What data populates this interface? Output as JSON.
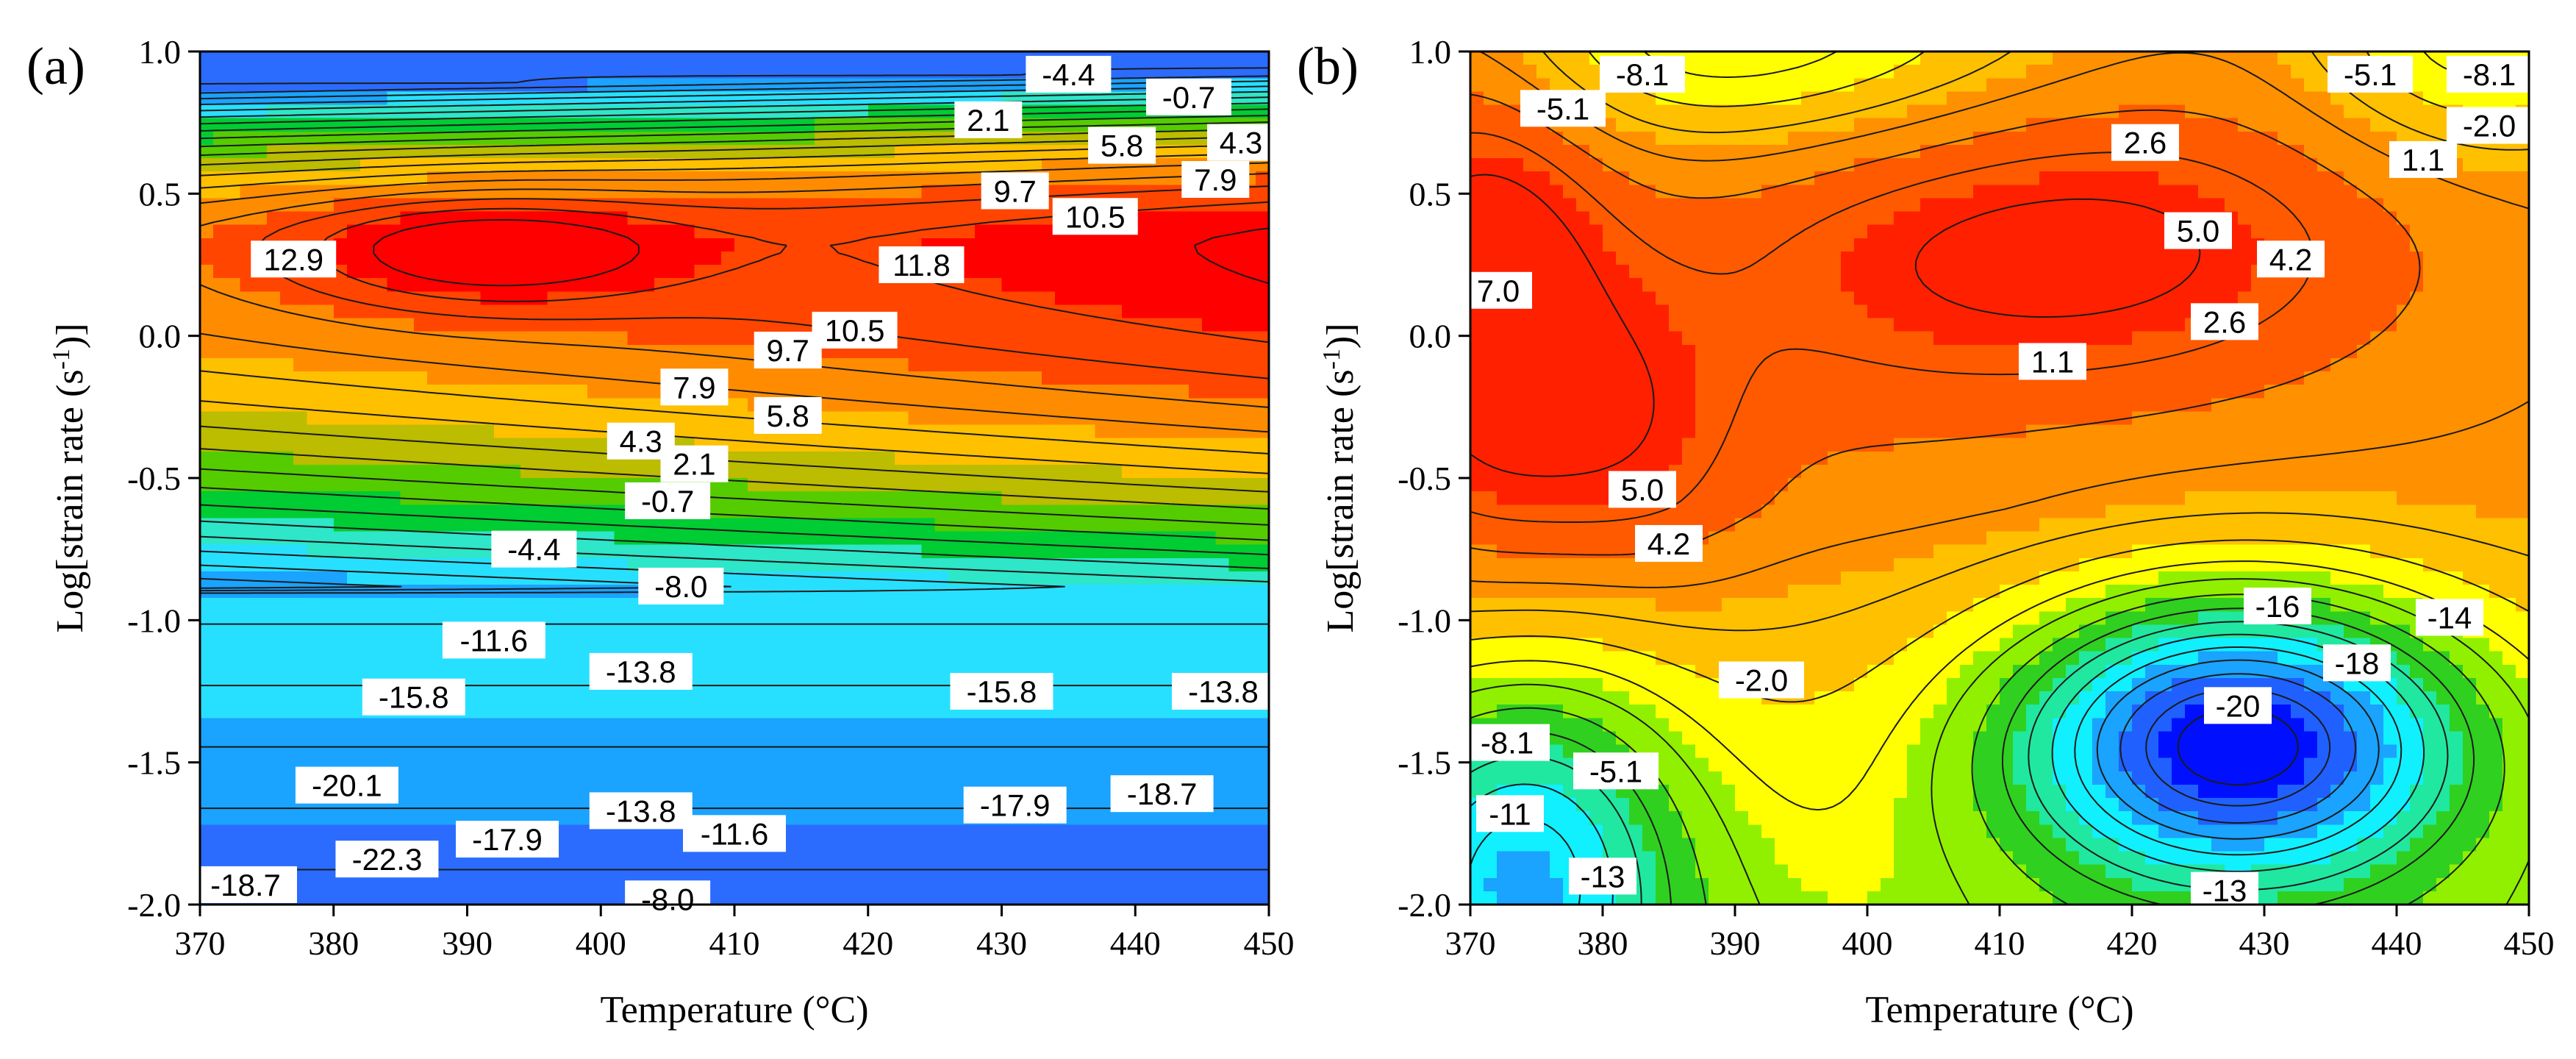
{
  "chart_data": [
    {
      "type": "contour",
      "panel_label": "(a)",
      "xlabel": "Temperature (°C)",
      "ylabel": "Log[strain rate (s",
      "ylabel_sup": "-1",
      "ylabel_end": ")]",
      "xlim": [
        370,
        450
      ],
      "ylim": [
        -2.0,
        1.0
      ],
      "x_ticks": [
        "370",
        "380",
        "390",
        "400",
        "410",
        "420",
        "430",
        "440",
        "450"
      ],
      "y_ticks": [
        "1.0",
        "0.5",
        "0.0",
        "-0.5",
        "-1.0",
        "-1.5",
        "-2.0"
      ],
      "colormap": [
        "#0000ff",
        "#2b6cff",
        "#1aa3ff",
        "#27e0ff",
        "#2ee6c8",
        "#00cc33",
        "#55cc00",
        "#bcbc00",
        "#ffc000",
        "#ff8c00",
        "#ff4500",
        "#ff0000"
      ],
      "peaks": [
        {
          "x": 391,
          "y": 0.3,
          "value": 12.9
        },
        {
          "x": 381,
          "y": -1.85,
          "value": -22.3
        },
        {
          "x": 437,
          "y": -1.65,
          "value": -18.7
        }
      ],
      "contour_labels": [
        {
          "text": "-4.4",
          "x": 435,
          "y": 0.92
        },
        {
          "text": "-0.7",
          "x": 444,
          "y": 0.84
        },
        {
          "text": "2.1",
          "x": 429,
          "y": 0.76
        },
        {
          "text": "5.8",
          "x": 439,
          "y": 0.67
        },
        {
          "text": "4.3",
          "x": 450,
          "y": 0.68
        },
        {
          "text": "7.9",
          "x": 446,
          "y": 0.55
        },
        {
          "text": "9.7",
          "x": 431,
          "y": 0.51
        },
        {
          "text": "10.5",
          "x": 437,
          "y": 0.42
        },
        {
          "text": "12.9",
          "x": 377,
          "y": 0.27
        },
        {
          "text": "11.8",
          "x": 424,
          "y": 0.25
        },
        {
          "text": "10.5",
          "x": 419,
          "y": 0.02
        },
        {
          "text": "9.7",
          "x": 414,
          "y": -0.05
        },
        {
          "text": "7.9",
          "x": 407,
          "y": -0.18
        },
        {
          "text": "5.8",
          "x": 414,
          "y": -0.28
        },
        {
          "text": "4.3",
          "x": 403,
          "y": -0.37
        },
        {
          "text": "2.1",
          "x": 407,
          "y": -0.45
        },
        {
          "text": "-0.7",
          "x": 405,
          "y": -0.58
        },
        {
          "text": "-4.4",
          "x": 395,
          "y": -0.75
        },
        {
          "text": "-8.0",
          "x": 406,
          "y": -0.88
        },
        {
          "text": "-11.6",
          "x": 392,
          "y": -1.07
        },
        {
          "text": "-13.8",
          "x": 403,
          "y": -1.18
        },
        {
          "text": "-15.8",
          "x": 386,
          "y": -1.27
        },
        {
          "text": "-15.8",
          "x": 430,
          "y": -1.25
        },
        {
          "text": "-13.8",
          "x": 447,
          "y": -1.25
        },
        {
          "text": "-20.1",
          "x": 381,
          "y": -1.58
        },
        {
          "text": "-17.9",
          "x": 431,
          "y": -1.65
        },
        {
          "text": "-18.7",
          "x": 442,
          "y": -1.61
        },
        {
          "text": "-13.8",
          "x": 403,
          "y": -1.67
        },
        {
          "text": "-11.6",
          "x": 410,
          "y": -1.75
        },
        {
          "text": "-17.9",
          "x": 393,
          "y": -1.77
        },
        {
          "text": "-22.3",
          "x": 384,
          "y": -1.84
        },
        {
          "text": "-18.7",
          "x": 372,
          "y": -1.93
        },
        {
          "text": "-8.0",
          "x": 405,
          "y": -1.98
        }
      ]
    },
    {
      "type": "contour",
      "panel_label": "(b)",
      "xlabel": "Temperature (°C)",
      "ylabel": "Log[strain rate (s",
      "ylabel_sup": "-1",
      "ylabel_end": ")]",
      "xlim": [
        370,
        450
      ],
      "ylim": [
        -2.0,
        1.0
      ],
      "x_ticks": [
        "370",
        "380",
        "390",
        "400",
        "410",
        "420",
        "430",
        "440",
        "450"
      ],
      "y_ticks": [
        "1.0",
        "0.5",
        "0.0",
        "-0.5",
        "-1.0",
        "-1.5",
        "-2.0"
      ],
      "colormap": [
        "#0010ff",
        "#2060ff",
        "#1aa3ff",
        "#10f0ff",
        "#20e8a0",
        "#30d020",
        "#90f000",
        "#ffff00",
        "#ffc000",
        "#ff9000",
        "#ff5a00",
        "#ff2000"
      ],
      "peaks": [
        {
          "x": 372,
          "y": 0.1,
          "value": 7.0
        },
        {
          "x": 419,
          "y": 0.36,
          "value": 5.0
        },
        {
          "x": 428,
          "y": -1.4,
          "value": -20
        }
      ],
      "contour_labels": [
        {
          "text": "-8.1",
          "x": 383,
          "y": 0.92
        },
        {
          "text": "-5.1",
          "x": 377,
          "y": 0.8
        },
        {
          "text": "-5.1",
          "x": 438,
          "y": 0.92
        },
        {
          "text": "-8.1",
          "x": 447,
          "y": 0.92
        },
        {
          "text": "-2.0",
          "x": 447,
          "y": 0.74
        },
        {
          "text": "2.6",
          "x": 421,
          "y": 0.68
        },
        {
          "text": "1.1",
          "x": 442,
          "y": 0.62
        },
        {
          "text": "5.0",
          "x": 425,
          "y": 0.37
        },
        {
          "text": "4.2",
          "x": 432,
          "y": 0.27
        },
        {
          "text": "7.0",
          "x": 371,
          "y": 0.16
        },
        {
          "text": "2.6",
          "x": 427,
          "y": 0.05
        },
        {
          "text": "1.1",
          "x": 414,
          "y": -0.09
        },
        {
          "text": "5.0",
          "x": 383,
          "y": -0.54
        },
        {
          "text": "4.2",
          "x": 385,
          "y": -0.73
        },
        {
          "text": "-16",
          "x": 431,
          "y": -0.95
        },
        {
          "text": "-14",
          "x": 444,
          "y": -0.99
        },
        {
          "text": "-18",
          "x": 437,
          "y": -1.15
        },
        {
          "text": "-2.0",
          "x": 392,
          "y": -1.21
        },
        {
          "text": "-20",
          "x": 428,
          "y": -1.3
        },
        {
          "text": "-8.1",
          "x": 372,
          "y": -1.43
        },
        {
          "text": "-5.1",
          "x": 381,
          "y": -1.53
        },
        {
          "text": "-11",
          "x": 373,
          "y": -1.68
        },
        {
          "text": "-13",
          "x": 380,
          "y": -1.9
        },
        {
          "text": "-13",
          "x": 427,
          "y": -1.95
        }
      ]
    }
  ]
}
